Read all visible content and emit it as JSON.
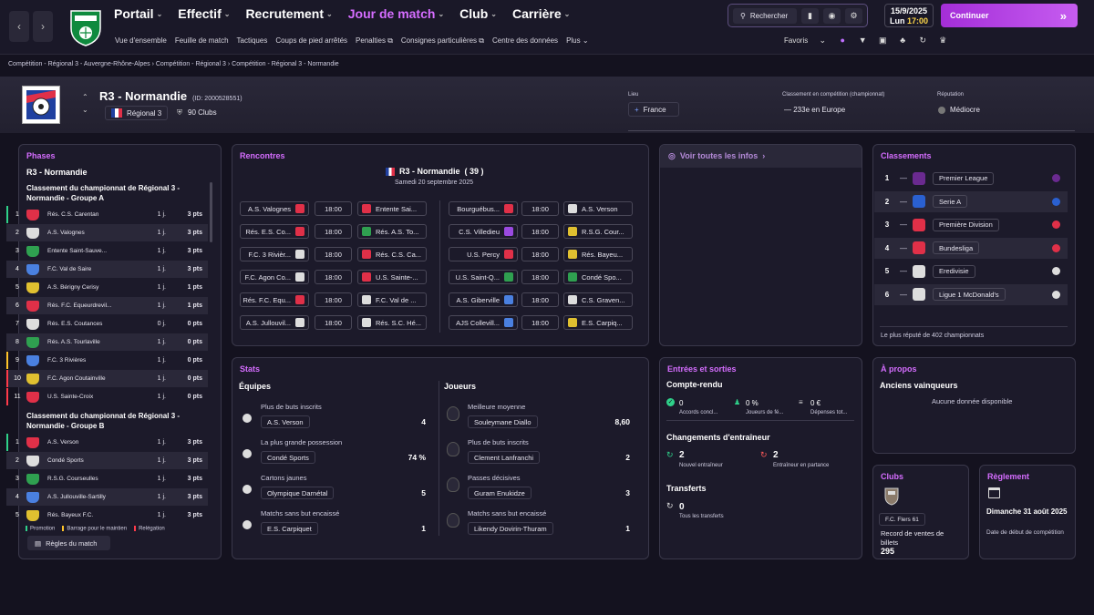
{
  "nav": {
    "main": [
      {
        "label": "Portail",
        "active": false
      },
      {
        "label": "Effectif",
        "active": false
      },
      {
        "label": "Recrutement",
        "active": false
      },
      {
        "label": "Jour de match",
        "active": true
      },
      {
        "label": "Club",
        "active": false
      },
      {
        "label": "Carrière",
        "active": false
      }
    ],
    "sub": [
      "Vue d'ensemble",
      "Feuille de match",
      "Tactiques",
      "Coups de pied arrêtés",
      "Penalties",
      "Consignes particulières",
      "Centre des données",
      "Plus"
    ],
    "search_label": "Rechercher",
    "date": "15/9/2025",
    "day": "Lun",
    "time": "17:00",
    "continue_label": "Continuer",
    "favorites_label": "Favoris"
  },
  "breadcrumb": [
    "Compétition - Régional 3 - Auvergne-Rhône-Alpes",
    "Compétition - Régional 3",
    "Compétition - Régional 3 - Normandie"
  ],
  "competition": {
    "name": "R3 - Normandie",
    "id": "(ID: 2000528551)",
    "level": "Régional 3",
    "clubs": "90 Clubs",
    "lieu_label": "Lieu",
    "lieu": "France",
    "classement_label": "Classement en compétition (championnat)",
    "classement": "233e en Europe",
    "reputation_label": "Réputation",
    "reputation": "Médiocre"
  },
  "phases": {
    "title": "Phases",
    "comp": "R3 - Normandie",
    "groupA": {
      "title": "Classement du championnat de Régional 3 - Normandie - Groupe A",
      "rows": [
        {
          "rank": "1",
          "team": "Rés. C.S. Carentan",
          "played": "1 j.",
          "pts": "3 pts",
          "status": "promo"
        },
        {
          "rank": "2",
          "team": "A.S. Valognes",
          "played": "1 j.",
          "pts": "3 pts",
          "status": ""
        },
        {
          "rank": "3",
          "team": "Entente Saint-Sauve...",
          "played": "1 j.",
          "pts": "3 pts",
          "status": ""
        },
        {
          "rank": "4",
          "team": "F.C. Val de Saire",
          "played": "1 j.",
          "pts": "3 pts",
          "status": ""
        },
        {
          "rank": "5",
          "team": "A.S. Bérigny Cerisy",
          "played": "1 j.",
          "pts": "1 pts",
          "status": ""
        },
        {
          "rank": "6",
          "team": "Rés. F.C. Equeurdrevil...",
          "played": "1 j.",
          "pts": "1 pts",
          "status": ""
        },
        {
          "rank": "7",
          "team": "Rés. E.S. Coutances",
          "played": "0 j.",
          "pts": "0 pts",
          "status": ""
        },
        {
          "rank": "8",
          "team": "Rés. A.S. Tourlaville",
          "played": "1 j.",
          "pts": "0 pts",
          "status": ""
        },
        {
          "rank": "9",
          "team": "F.C. 3 Rivières",
          "played": "1 j.",
          "pts": "0 pts",
          "status": "barrage"
        },
        {
          "rank": "10",
          "team": "F.C. Agon Coutainville",
          "played": "1 j.",
          "pts": "0 pts",
          "status": "releg"
        },
        {
          "rank": "11",
          "team": "U.S. Sainte-Croix",
          "played": "1 j.",
          "pts": "0 pts",
          "status": "releg"
        }
      ]
    },
    "groupB": {
      "title": "Classement du championnat de Régional 3 - Normandie - Groupe B",
      "rows": [
        {
          "rank": "1",
          "team": "A.S. Verson",
          "played": "1 j.",
          "pts": "3 pts",
          "status": "promo"
        },
        {
          "rank": "2",
          "team": "Condé Sports",
          "played": "1 j.",
          "pts": "3 pts",
          "status": ""
        },
        {
          "rank": "3",
          "team": "R.S.G. Courseulles",
          "played": "1 j.",
          "pts": "3 pts",
          "status": ""
        },
        {
          "rank": "4",
          "team": "A.S. Jullouville-Sartilly",
          "played": "1 j.",
          "pts": "3 pts",
          "status": ""
        },
        {
          "rank": "5",
          "team": "Rés. Bayeux F.C.",
          "played": "1 j.",
          "pts": "3 pts",
          "status": ""
        }
      ]
    },
    "legend": {
      "promo": "Promotion",
      "barrage": "Barrage pour le maintien",
      "releg": "Relégation"
    },
    "rules_label": "Règles du match"
  },
  "matches": {
    "title": "Rencontres",
    "comp": "R3 - Normandie",
    "round": "( 39 )",
    "date": "Samedi 20 septembre 2025",
    "left": [
      {
        "home": "A.S. Valognes",
        "time": "18:00",
        "away": "Entente Sai...",
        "hc": "#e03048",
        "ac": "#e03048"
      },
      {
        "home": "Rés. E.S. Co...",
        "time": "18:00",
        "away": "Rés. A.S. To...",
        "hc": "#e03048",
        "ac": "#2fa050"
      },
      {
        "home": "F.C. 3 Rivièr...",
        "time": "18:00",
        "away": "Rés. C.S. Ca...",
        "hc": "#dddddd",
        "ac": "#e03048"
      },
      {
        "home": "F.C. Agon Co...",
        "time": "18:00",
        "away": "U.S. Sainte-...",
        "hc": "#dddddd",
        "ac": "#e03048"
      },
      {
        "home": "Rés. F.C. Equ...",
        "time": "18:00",
        "away": "F.C. Val de ...",
        "hc": "#e03048",
        "ac": "#dddddd"
      },
      {
        "home": "A.S. Jullouvil...",
        "time": "18:00",
        "away": "Rés. S.C. Hé...",
        "hc": "#dddddd",
        "ac": "#dddddd"
      }
    ],
    "right": [
      {
        "home": "Bourguébus...",
        "time": "18:00",
        "away": "A.S. Verson",
        "hc": "#e03048",
        "ac": "#dddddd"
      },
      {
        "home": "C.S. Villedieu",
        "time": "18:00",
        "away": "R.S.G. Cour...",
        "hc": "#9a4ae0",
        "ac": "#e0c030"
      },
      {
        "home": "U.S. Percy",
        "time": "18:00",
        "away": "Rés. Bayeu...",
        "hc": "#e03048",
        "ac": "#e0c030"
      },
      {
        "home": "U.S. Saint-Q...",
        "time": "18:00",
        "away": "Condé Spo...",
        "hc": "#2fa050",
        "ac": "#2fa050"
      },
      {
        "home": "A.S. Giberville",
        "time": "18:00",
        "away": "C.S. Graven...",
        "hc": "#4a80e0",
        "ac": "#dddddd"
      },
      {
        "home": "AJS Collevill...",
        "time": "18:00",
        "away": "E.S. Carpiq...",
        "hc": "#4a80e0",
        "ac": "#e0c030"
      }
    ]
  },
  "infos": {
    "title": "Voir toutes les infos"
  },
  "classements": {
    "title": "Classements",
    "rows": [
      {
        "rank": "1",
        "name": "Premier League",
        "color": "#6a2a90"
      },
      {
        "rank": "2",
        "name": "Serie A",
        "color": "#2a60d0"
      },
      {
        "rank": "3",
        "name": "Première Division",
        "color": "#e03048"
      },
      {
        "rank": "4",
        "name": "Bundesliga",
        "color": "#e03048"
      },
      {
        "rank": "5",
        "name": "Eredivisie",
        "color": "#dddddd"
      },
      {
        "rank": "6",
        "name": "Ligue 1 McDonald's",
        "color": "#dddddd"
      }
    ],
    "footer": "Le plus réputé de 402 championnats"
  },
  "stats": {
    "title": "Stats",
    "teams_label": "Équipes",
    "players_label": "Joueurs",
    "teams": [
      {
        "label": "Plus de buts inscrits",
        "name": "A.S. Verson",
        "value": "4"
      },
      {
        "label": "La plus grande possession",
        "name": "Condé Sports",
        "value": "74 %"
      },
      {
        "label": "Cartons jaunes",
        "name": "Olympique Darnétal",
        "value": "5"
      },
      {
        "label": "Matchs sans but encaissé",
        "name": "E.S. Carpiquet",
        "value": "1"
      }
    ],
    "players": [
      {
        "label": "Meilleure moyenne",
        "name": "Souleymane Diallo",
        "value": "8,60"
      },
      {
        "label": "Plus de buts inscrits",
        "name": "Clement Lanfranchi",
        "value": "2"
      },
      {
        "label": "Passes décisives",
        "name": "Guram Enukidze",
        "value": "3"
      },
      {
        "label": "Matchs sans but encaissé",
        "name": "Likendy Dovirin-Thuram",
        "value": "1"
      }
    ]
  },
  "transfers": {
    "title": "Entrées et sorties",
    "report_label": "Compte-rendu",
    "accords_val": "0",
    "accords_label": "Accords concl...",
    "joueurs_val": "0 %",
    "joueurs_label": "Joueurs de fé...",
    "depenses_val": "0 €",
    "depenses_label": "Dépenses tot...",
    "coach_label": "Changements d'entraîneur",
    "new_val": "2",
    "new_label": "Nouvel entraîneur",
    "leaving_val": "2",
    "leaving_label": "Entraîneur en partance",
    "transfers_label": "Transferts",
    "all_val": "0",
    "all_label": "Tous les transferts"
  },
  "apropos": {
    "title": "À propos",
    "winners_label": "Anciens vainqueurs",
    "no_data": "Aucune donnée disponible"
  },
  "clubs": {
    "title": "Clubs",
    "club": "F.C. Flers 61",
    "label": "Record de ventes de billets",
    "value": "295"
  },
  "reglement": {
    "title": "Règlement",
    "date": "Dimanche 31 août 2025",
    "label": "Date de début de compétition"
  }
}
